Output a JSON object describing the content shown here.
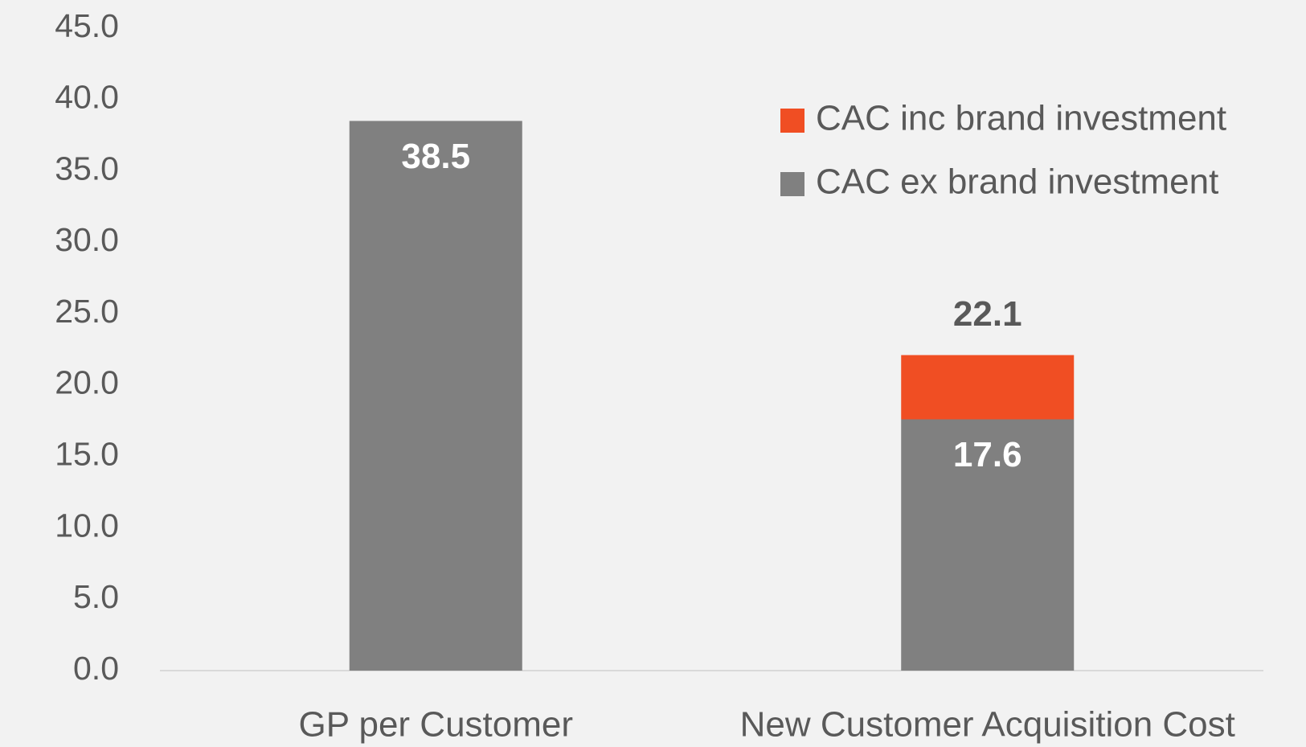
{
  "chart_data": {
    "type": "stacked_bar",
    "categories": [
      "GP per Customer",
      "New Customer Acquisition Cost"
    ],
    "series": [
      {
        "name": "CAC ex brand investment",
        "color": "#808080",
        "values": [
          38.5,
          17.6
        ]
      },
      {
        "name": "CAC inc brand investment",
        "color": "#f04e23",
        "values": [
          null,
          4.5
        ]
      }
    ],
    "totals": [
      null,
      22.1
    ],
    "ylim": [
      0,
      45
    ],
    "yticks": [
      {
        "value": 0,
        "label": "0.0"
      },
      {
        "value": 5,
        "label": "5.0"
      },
      {
        "value": 10,
        "label": "10.0"
      },
      {
        "value": 15,
        "label": "15.0"
      },
      {
        "value": 20,
        "label": "20.0"
      },
      {
        "value": 25,
        "label": "25.0"
      },
      {
        "value": 30,
        "label": "30.0"
      },
      {
        "value": 35,
        "label": "35.0"
      },
      {
        "value": 40,
        "label": "40.0"
      },
      {
        "value": 45,
        "label": "45.0"
      }
    ],
    "legend": "top-right"
  }
}
